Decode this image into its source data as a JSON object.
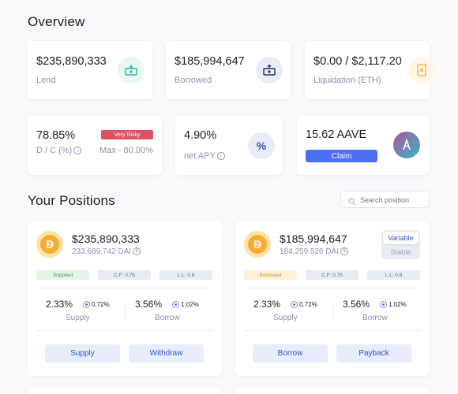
{
  "overview": {
    "title": "Overview",
    "lend": {
      "value": "$235,890,333",
      "label": "Lend",
      "icon": "money-in-icon"
    },
    "borrowed": {
      "value": "$185,994,647",
      "label": "Borrowed",
      "icon": "money-out-icon"
    },
    "liquidation": {
      "value": "$0.00 / $2,117.20",
      "label": "Liquidation (ETH)",
      "icon": "receipt-icon"
    },
    "dc": {
      "value": "78.85%",
      "label": "D / C (%)",
      "badge": "Very Risky",
      "max": "Max - 80.00%"
    },
    "apy": {
      "value": "4.90%",
      "label": "net APY",
      "icon_text": "%"
    },
    "aave": {
      "value": "15.62 AAVE",
      "claim_label": "Claim",
      "icon": "aave-logo-icon"
    }
  },
  "positions": {
    "title": "Your Positions",
    "search_placeholder": "Search position",
    "cards": [
      {
        "amount": "$235,890,333",
        "token_amount": "233,689,742 DAI",
        "tags": [
          "Supplied",
          "C.F: 0.75",
          "L.L: 0.8"
        ],
        "supply_rate": "2.33%",
        "supply_mini": "0.72%",
        "supply_label": "Supply",
        "borrow_rate": "3.56%",
        "borrow_mini": "1.02%",
        "borrow_label": "Borrow",
        "buttons": [
          "Supply",
          "Withdraw"
        ]
      },
      {
        "amount": "$185,994,647",
        "token_amount": "184,259,526 DAI",
        "toggle": {
          "selected": "Variable",
          "other": "Stable"
        },
        "tags": [
          "Borrowed",
          "C.F: 0.75",
          "L.L: 0.8"
        ],
        "supply_rate": "2.33%",
        "supply_mini": "0.72%",
        "supply_label": "Supply",
        "borrow_rate": "3.56%",
        "borrow_mini": "1.02%",
        "borrow_label": "Borrow",
        "buttons": [
          "Borrow",
          "Payback"
        ]
      }
    ]
  },
  "colors": {
    "accent": "#4c6ef5",
    "risky": "#e05263",
    "teal": "#2bb9a8",
    "dai": "#f5ac37"
  }
}
